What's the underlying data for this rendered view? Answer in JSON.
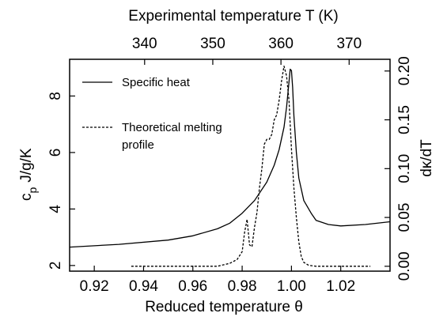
{
  "chart_data": {
    "type": "line",
    "title": "",
    "xlabel": "Reduced temperature θ",
    "x2label": "Experimental temperature T (K)",
    "ylabel_main": "c",
    "ylabel_sub": "p",
    "ylabel_unit": "J/g/K",
    "y2label": "dκ/dT",
    "xlim": [
      0.91,
      1.04
    ],
    "ylim": [
      1.8,
      9.3
    ],
    "y2lim": [
      -0.005,
      0.212
    ],
    "x2lim": [
      329.0,
      376.0
    ],
    "xticks": [
      0.92,
      0.94,
      0.96,
      0.98,
      1.0,
      1.02
    ],
    "xtick_labels": [
      "0.92",
      "0.94",
      "0.96",
      "0.98",
      "1.00",
      "1.02"
    ],
    "yticks": [
      2,
      4,
      6,
      8
    ],
    "ytick_labels": [
      "2",
      "4",
      "6",
      "8"
    ],
    "y2ticks": [
      0.0,
      0.05,
      0.1,
      0.15,
      0.2
    ],
    "y2tick_labels": [
      "0.00",
      "0.05",
      "0.10",
      "0.15",
      "0.20"
    ],
    "x2ticks": [
      340,
      350,
      360,
      370
    ],
    "x2tick_labels": [
      "340",
      "350",
      "360",
      "370"
    ],
    "legend": {
      "position": "top-left"
    },
    "series": [
      {
        "name": "Specific heat",
        "axis": "left",
        "style": "solid",
        "x": [
          0.91,
          0.93,
          0.95,
          0.96,
          0.97,
          0.975,
          0.98,
          0.985,
          0.99,
          0.993,
          0.995,
          0.997,
          0.998,
          0.999,
          0.9995,
          1.0,
          1.0005,
          1.001,
          1.002,
          1.003,
          1.005,
          1.008,
          1.01,
          1.015,
          1.02,
          1.03,
          1.04
        ],
        "y": [
          2.65,
          2.75,
          2.9,
          3.05,
          3.3,
          3.5,
          3.85,
          4.3,
          4.95,
          5.55,
          6.1,
          6.9,
          7.6,
          8.5,
          8.95,
          8.9,
          8.3,
          7.3,
          6.0,
          5.1,
          4.3,
          3.85,
          3.6,
          3.45,
          3.4,
          3.45,
          3.55
        ]
      },
      {
        "name": "Theoretical melting profile",
        "axis": "right",
        "style": "dashed",
        "x": [
          0.935,
          0.97,
          0.975,
          0.978,
          0.98,
          0.981,
          0.982,
          0.983,
          0.984,
          0.985,
          0.986,
          0.987,
          0.988,
          0.989,
          0.99,
          0.991,
          0.992,
          0.993,
          0.994,
          0.995,
          0.996,
          0.997,
          0.998,
          0.999,
          1.0,
          1.001,
          1.002,
          1.003,
          1.004,
          1.005,
          1.007,
          1.01,
          1.02,
          1.032
        ],
        "y": [
          0.0,
          0.0,
          0.003,
          0.007,
          0.015,
          0.035,
          0.048,
          0.022,
          0.02,
          0.04,
          0.055,
          0.08,
          0.1,
          0.125,
          0.13,
          0.13,
          0.135,
          0.15,
          0.155,
          0.17,
          0.19,
          0.205,
          0.195,
          0.17,
          0.12,
          0.08,
          0.05,
          0.025,
          0.01,
          0.004,
          0.001,
          0.0,
          0.0,
          0.0
        ]
      }
    ]
  }
}
